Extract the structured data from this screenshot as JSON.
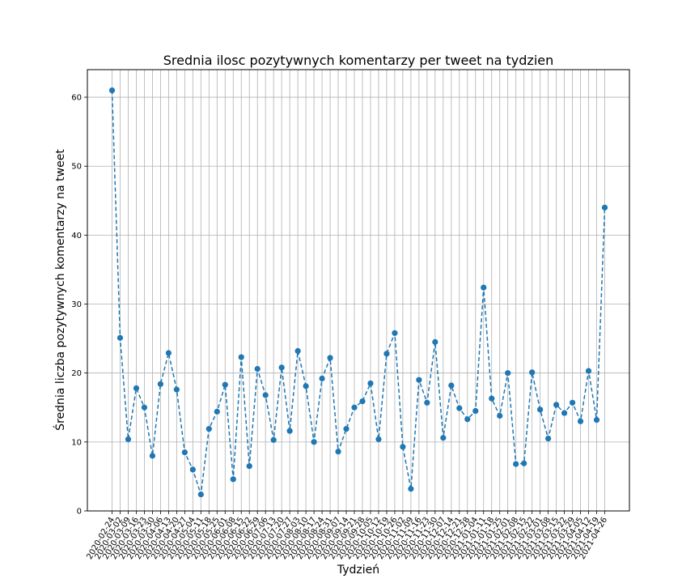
{
  "chart_data": {
    "type": "line",
    "title": "Srednia ilosc pozytywnych komentarzy per tweet na tydzien",
    "xlabel": "Tydzień",
    "ylabel": "Średnia liczba pozytywnych komentarzy na tweet",
    "ylim": [
      0,
      64
    ],
    "yticks": [
      0,
      10,
      20,
      30,
      40,
      50,
      60
    ],
    "grid": true,
    "line_style": "dashed",
    "marker": "circle",
    "color": "#1f77b4",
    "categories": [
      "2020-02-24",
      "2020-03-02",
      "2020-03-09",
      "2020-03-16",
      "2020-03-23",
      "2020-03-30",
      "2020-04-06",
      "2020-04-13",
      "2020-04-20",
      "2020-04-27",
      "2020-05-04",
      "2020-05-11",
      "2020-05-18",
      "2020-05-25",
      "2020-06-01",
      "2020-06-08",
      "2020-06-15",
      "2020-06-22",
      "2020-06-29",
      "2020-07-06",
      "2020-07-13",
      "2020-07-20",
      "2020-07-27",
      "2020-08-03",
      "2020-08-10",
      "2020-08-17",
      "2020-08-24",
      "2020-08-31",
      "2020-09-07",
      "2020-09-14",
      "2020-09-21",
      "2020-09-28",
      "2020-10-05",
      "2020-10-12",
      "2020-10-19",
      "2020-10-26",
      "2020-11-02",
      "2020-11-09",
      "2020-11-16",
      "2020-11-23",
      "2020-11-30",
      "2020-12-07",
      "2020-12-14",
      "2020-12-21",
      "2020-12-28",
      "2021-01-04",
      "2021-01-11",
      "2021-01-18",
      "2021-01-25",
      "2021-02-01",
      "2021-02-08",
      "2021-02-15",
      "2021-02-22",
      "2021-03-01",
      "2021-03-08",
      "2021-03-15",
      "2021-03-22",
      "2021-03-29",
      "2021-04-05",
      "2021-04-12",
      "2021-04-19",
      "2021-04-26"
    ],
    "xtick_labels": [
      "2020-02-24",
      "2020-03-02",
      "2020-03-09",
      "2020-03-16",
      "2020-03-23",
      "2020-03-30",
      "2020-04-06",
      "2020-04-13",
      "2020-04-20",
      "2020-04-27",
      "2020-05-04",
      "2020-05-11",
      "2020-05-18",
      "2020-05-25",
      "2020-06-01",
      "2020-06-08",
      "2020-06-15",
      "2020-06-22",
      "2020-06-29",
      "2020-07-06",
      "2020-07-13",
      "2020-07-20",
      "2020-07-27",
      "2020-08-03",
      "2020-08-10",
      "2020-08-17",
      "2020-08-24",
      "2020-08-31",
      "2020-09-07",
      "2020-09-14",
      "2020-09-21",
      "2020-09-28",
      "2020-10-05",
      "2020-10-12",
      "2020-10-19",
      "2020-10-26",
      "2020-11-02",
      "2020-11-09",
      "2020-11-16",
      "2020-11-23",
      "2020-11-30",
      "2020-12-07",
      "2020-12-14",
      "2020-12-21",
      "2020-12-28",
      "2021-01-04",
      "2021-01-11",
      "2021-01-18",
      "2021-01-25",
      "2021-02-01",
      "2021-02-08",
      "2021-02-15",
      "2021-02-22",
      "2021-03-01",
      "2021-03-08",
      "2021-03-15",
      "2021-03-22",
      "2021-03-29",
      "2021-04-05",
      "2021-04-12",
      "2021-04-19",
      "2021-04-26"
    ],
    "values": [
      61.0,
      25.1,
      10.4,
      17.8,
      15.0,
      8.0,
      18.4,
      22.9,
      17.6,
      8.5,
      6.0,
      2.4,
      11.9,
      14.4,
      18.3,
      4.6,
      22.3,
      6.5,
      20.6,
      16.8,
      10.3,
      20.8,
      11.6,
      23.2,
      18.1,
      10.0,
      19.2,
      22.2,
      8.6,
      11.9,
      15.0,
      15.9,
      18.5,
      10.4,
      22.8,
      25.8,
      9.3,
      3.2,
      19.0,
      15.7,
      24.5,
      10.6,
      18.2,
      14.9,
      13.3,
      14.5,
      32.4,
      16.3,
      13.8,
      20.0,
      6.8,
      6.9,
      20.1,
      14.7,
      10.5,
      15.4,
      14.2,
      15.7,
      13.0,
      20.3,
      13.2,
      44.0
    ]
  }
}
